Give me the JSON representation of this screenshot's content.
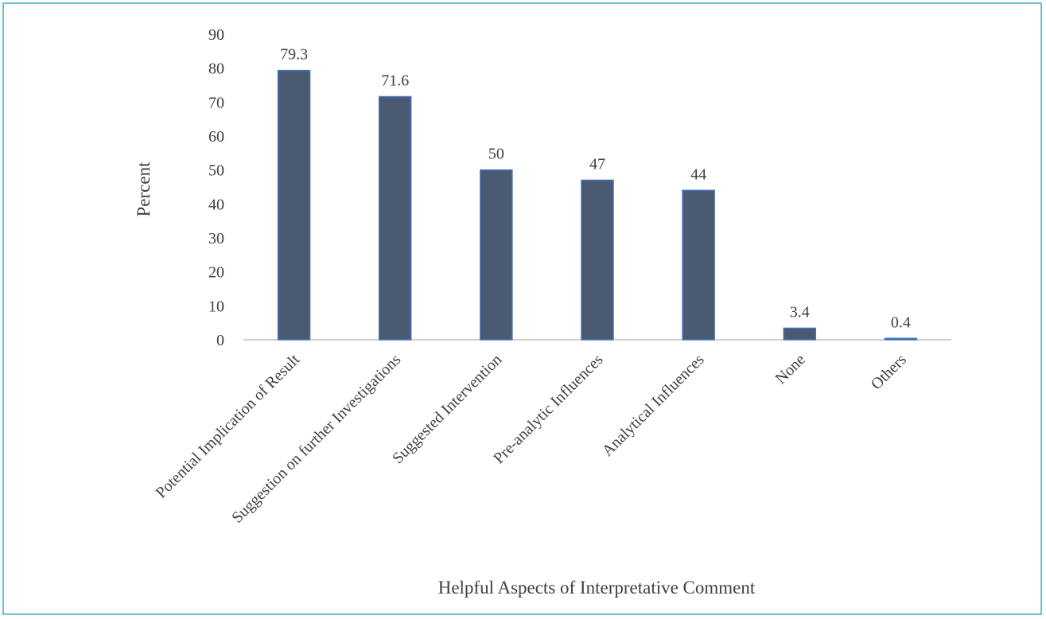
{
  "chart_data": {
    "type": "bar",
    "title": "",
    "xlabel": "Helpful Aspects of Interpretative Comment",
    "ylabel": "Percent",
    "ylim": [
      0,
      90
    ],
    "yticks": [
      0,
      10,
      20,
      30,
      40,
      50,
      60,
      70,
      80,
      90
    ],
    "categories": [
      "Potential Implication of Result",
      "Suggestion on further Investigations",
      "Suggested Intervention",
      "Pre-analytic Influences",
      "Analytical Influences",
      "None",
      "Others"
    ],
    "values": [
      79.3,
      71.6,
      50,
      47,
      44,
      3.4,
      0.4
    ],
    "data_labels": [
      "79.3",
      "71.6",
      "50",
      "47",
      "44",
      "3.4",
      "0.4"
    ],
    "grid": false,
    "legend": "none",
    "colors": {
      "bar_fill": "#4a5a70",
      "bar_stroke": "#4472c4",
      "axis": "#bfbfbf",
      "frame": "#6cc3d0"
    }
  }
}
